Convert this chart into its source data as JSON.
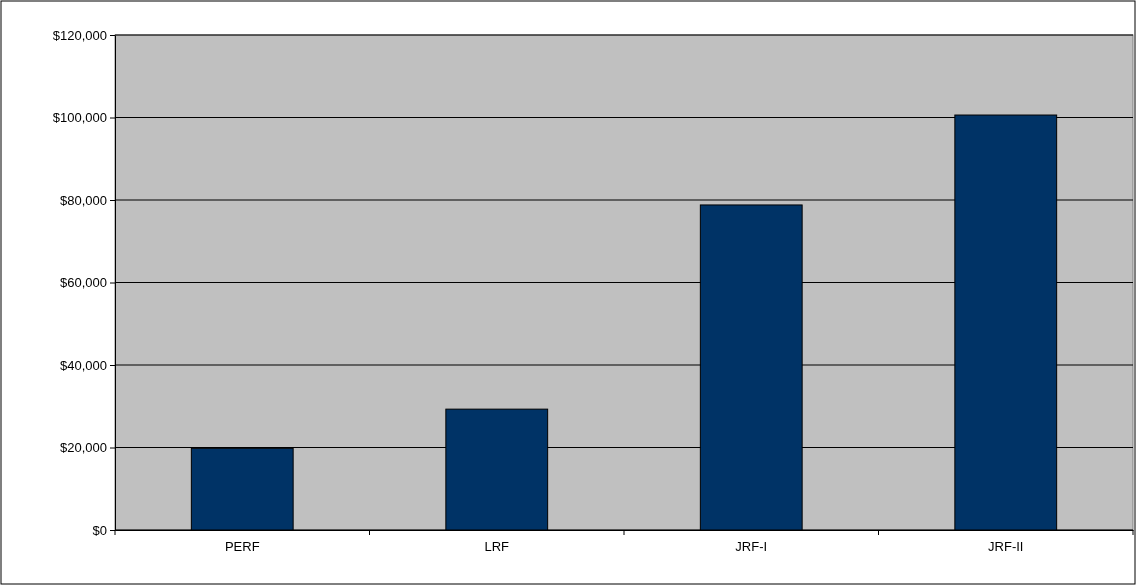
{
  "chart_data": {
    "type": "bar",
    "categories": [
      "PERF",
      "LRF",
      "JRF-I",
      "JRF-II"
    ],
    "values": [
      19800,
      29300,
      78800,
      100600
    ],
    "color": "#003366",
    "ylim": [
      0,
      120000
    ],
    "yticks": [
      {
        "value": 0,
        "label": "$0"
      },
      {
        "value": 20000,
        "label": "$20,000"
      },
      {
        "value": 40000,
        "label": "$40,000"
      },
      {
        "value": 60000,
        "label": "$60,000"
      },
      {
        "value": 80000,
        "label": "$80,000"
      },
      {
        "value": 100000,
        "label": "$100,000"
      },
      {
        "value": 120000,
        "label": "$120,000"
      }
    ],
    "grid": "y"
  }
}
